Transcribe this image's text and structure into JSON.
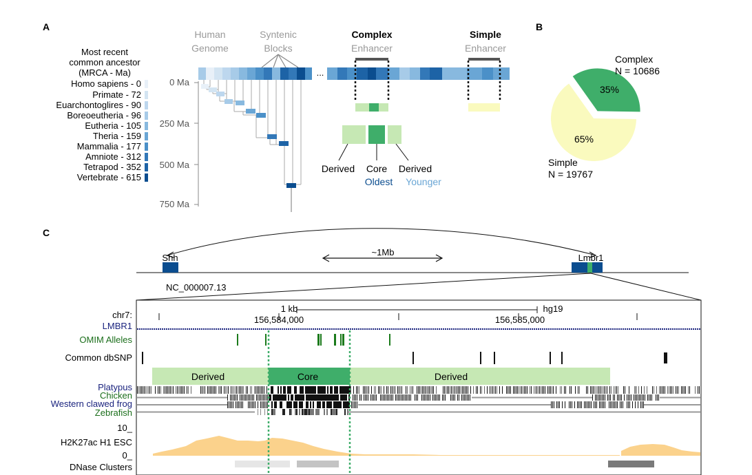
{
  "panels": {
    "a": "A",
    "b": "B",
    "c": "C"
  },
  "panel_a": {
    "mrca_title": [
      "Most recent",
      "common ancestor",
      "(MRCA - Ma)"
    ],
    "mrca_legend": [
      {
        "label": "Homo sapiens - 0",
        "color": "#e8f0f8"
      },
      {
        "label": "Primate - 72",
        "color": "#d3e4f2"
      },
      {
        "label": "Euarchontoglires - 90",
        "color": "#bdd7ee"
      },
      {
        "label": "Boreoeutheria - 96",
        "color": "#a7cbe8"
      },
      {
        "label": "Eutheria - 105",
        "color": "#88b9df"
      },
      {
        "label": "Theria - 159",
        "color": "#6aa6d5"
      },
      {
        "label": "Mammalia - 177",
        "color": "#4b90c8"
      },
      {
        "label": "Amniote - 312",
        "color": "#3378b8"
      },
      {
        "label": "Tetrapod - 352",
        "color": "#1d63a6"
      },
      {
        "label": "Vertebrate - 615",
        "color": "#0b4d8f"
      }
    ],
    "time_axis": [
      "0 Ma",
      "250 Ma",
      "500 Ma",
      "750 Ma"
    ],
    "human_genome": [
      "Human",
      "Genome"
    ],
    "syntenic_blocks": [
      "Syntenic",
      "Blocks"
    ],
    "complex_title": "Complex",
    "simple_title": "Simple",
    "enhancer_word": "Enhancer",
    "ellipsis": "...",
    "derived": "Derived",
    "core": "Core",
    "oldest": "Oldest",
    "younger": "Younger"
  },
  "panel_b": {
    "chart_data": {
      "type": "pie",
      "slices": [
        {
          "name": "Complex",
          "label": "Complex",
          "n_label": "N = 10686",
          "count": 10686,
          "percent_label": "35%",
          "percent": 35,
          "color": "#3fae6a"
        },
        {
          "name": "Simple",
          "label": "Simple",
          "n_label": "N = 19767",
          "count": 19767,
          "percent_label": "65%",
          "percent": 65,
          "color": "#fafabe"
        }
      ]
    }
  },
  "panel_c": {
    "shh": "Shh",
    "lmbr1_gene": "Lmbr1",
    "distance": "~1Mb",
    "accession": "NC_000007.13",
    "chr": "chr7:",
    "scale": "1 kb",
    "assembly": "hg19",
    "coord1": "156,584,000",
    "coord2": "156,585,000",
    "lmbr1_track": "LMBR1",
    "omim": "OMIM Alleles",
    "dbsnp": "Common dbSNP",
    "derived_left": "Derived",
    "core": "Core",
    "derived_right": "Derived",
    "platypus": "Platypus",
    "chicken": "Chicken",
    "frog": "Western clawed frog",
    "zebrafish": "Zebrafish",
    "h3k27ac_max": "10_",
    "h3k27ac": "H2K27ac H1 ESC",
    "h3k27ac_min": "0_",
    "dnase": "DNase Clusters"
  }
}
